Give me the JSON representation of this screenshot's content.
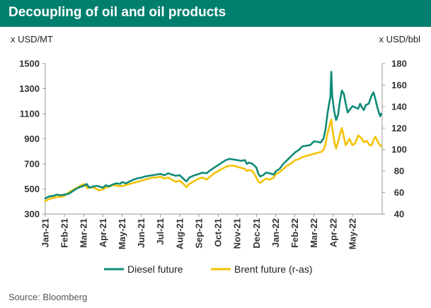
{
  "title": "Decoupling of oil and oil products",
  "source": "Source: Bloomberg",
  "chart_data": {
    "type": "line",
    "title": "Decoupling of oil and oil products",
    "ylabel_left": "x USD/MT",
    "ylabel_right": "x USD/bbl",
    "ylim_left": [
      300,
      1500
    ],
    "ylim_right": [
      40,
      180
    ],
    "yticks_left": [
      300,
      500,
      700,
      900,
      1100,
      1300,
      1500
    ],
    "yticks_right": [
      40,
      60,
      80,
      100,
      120,
      140,
      160,
      180
    ],
    "xticks": [
      "Jan-21",
      "Feb-21",
      "Mar-21",
      "Apr-21",
      "May-21",
      "Jun-21",
      "Jul-21",
      "Aug-21",
      "Sep-21",
      "Oct-21",
      "Nov-21",
      "Dec-21",
      "Jan-22",
      "Feb-22",
      "Mar-22",
      "Apr-22",
      "May-22"
    ],
    "x_unit": "months since Jan-21",
    "grid": false,
    "legend": "bottom",
    "series": [
      {
        "name": "Diesel future",
        "axis": "left",
        "color": "#0e8a78",
        "points": [
          [
            0.0,
            425
          ],
          [
            0.2,
            440
          ],
          [
            0.4,
            445
          ],
          [
            0.6,
            455
          ],
          [
            0.8,
            450
          ],
          [
            1.0,
            455
          ],
          [
            1.2,
            460
          ],
          [
            1.4,
            480
          ],
          [
            1.6,
            500
          ],
          [
            1.8,
            515
          ],
          [
            2.0,
            525
          ],
          [
            2.15,
            540
          ],
          [
            2.3,
            510
          ],
          [
            2.5,
            520
          ],
          [
            2.7,
            525
          ],
          [
            2.9,
            515
          ],
          [
            3.0,
            510
          ],
          [
            3.15,
            530
          ],
          [
            3.3,
            520
          ],
          [
            3.5,
            535
          ],
          [
            3.7,
            545
          ],
          [
            3.9,
            540
          ],
          [
            4.0,
            555
          ],
          [
            4.2,
            545
          ],
          [
            4.4,
            560
          ],
          [
            4.6,
            575
          ],
          [
            4.8,
            585
          ],
          [
            5.0,
            590
          ],
          [
            5.2,
            600
          ],
          [
            5.4,
            605
          ],
          [
            5.6,
            610
          ],
          [
            5.8,
            615
          ],
          [
            6.0,
            620
          ],
          [
            6.2,
            610
          ],
          [
            6.4,
            625
          ],
          [
            6.6,
            615
          ],
          [
            6.8,
            605
          ],
          [
            7.0,
            610
          ],
          [
            7.2,
            580
          ],
          [
            7.35,
            560
          ],
          [
            7.5,
            590
          ],
          [
            7.7,
            605
          ],
          [
            7.9,
            615
          ],
          [
            8.0,
            620
          ],
          [
            8.2,
            630
          ],
          [
            8.4,
            625
          ],
          [
            8.6,
            650
          ],
          [
            8.8,
            670
          ],
          [
            9.0,
            690
          ],
          [
            9.2,
            710
          ],
          [
            9.4,
            730
          ],
          [
            9.6,
            740
          ],
          [
            9.8,
            735
          ],
          [
            10.0,
            730
          ],
          [
            10.2,
            725
          ],
          [
            10.4,
            730
          ],
          [
            10.5,
            700
          ],
          [
            10.6,
            710
          ],
          [
            10.8,
            700
          ],
          [
            11.0,
            670
          ],
          [
            11.1,
            620
          ],
          [
            11.2,
            600
          ],
          [
            11.35,
            610
          ],
          [
            11.5,
            630
          ],
          [
            11.7,
            625
          ],
          [
            11.9,
            615
          ],
          [
            12.0,
            640
          ],
          [
            12.2,
            660
          ],
          [
            12.4,
            700
          ],
          [
            12.6,
            730
          ],
          [
            12.8,
            760
          ],
          [
            13.0,
            790
          ],
          [
            13.2,
            810
          ],
          [
            13.4,
            840
          ],
          [
            13.6,
            845
          ],
          [
            13.8,
            850
          ],
          [
            14.0,
            880
          ],
          [
            14.2,
            875
          ],
          [
            14.35,
            870
          ],
          [
            14.5,
            905
          ],
          [
            14.6,
            980
          ],
          [
            14.7,
            1100
          ],
          [
            14.8,
            1190
          ],
          [
            14.85,
            1235
          ],
          [
            14.9,
            1435
          ],
          [
            14.95,
            1240
          ],
          [
            15.05,
            1120
          ],
          [
            15.15,
            1050
          ],
          [
            15.25,
            1090
          ],
          [
            15.35,
            1200
          ],
          [
            15.45,
            1285
          ],
          [
            15.55,
            1260
          ],
          [
            15.65,
            1180
          ],
          [
            15.75,
            1110
          ],
          [
            15.85,
            1130
          ],
          [
            16.0,
            1160
          ],
          [
            16.15,
            1150
          ],
          [
            16.3,
            1140
          ],
          [
            16.4,
            1180
          ],
          [
            16.5,
            1150
          ],
          [
            16.6,
            1130
          ],
          [
            16.7,
            1170
          ],
          [
            16.85,
            1180
          ],
          [
            17.0,
            1245
          ],
          [
            17.1,
            1270
          ],
          [
            17.2,
            1215
          ],
          [
            17.3,
            1150
          ],
          [
            17.4,
            1100
          ],
          [
            17.45,
            1080
          ],
          [
            17.5,
            1100
          ]
        ]
      },
      {
        "name": "Brent future (r-as)",
        "axis": "right",
        "color": "#f2c200",
        "points": [
          [
            0.0,
            52
          ],
          [
            0.2,
            54
          ],
          [
            0.4,
            55
          ],
          [
            0.6,
            56
          ],
          [
            0.8,
            56
          ],
          [
            1.0,
            57
          ],
          [
            1.2,
            60
          ],
          [
            1.4,
            62
          ],
          [
            1.6,
            64
          ],
          [
            1.8,
            66
          ],
          [
            2.0,
            68
          ],
          [
            2.2,
            64
          ],
          [
            2.4,
            65
          ],
          [
            2.6,
            64
          ],
          [
            2.8,
            62
          ],
          [
            3.0,
            63
          ],
          [
            3.2,
            65
          ],
          [
            3.4,
            66
          ],
          [
            3.6,
            67
          ],
          [
            3.8,
            66
          ],
          [
            4.0,
            66
          ],
          [
            4.2,
            67
          ],
          [
            4.4,
            68
          ],
          [
            4.6,
            69
          ],
          [
            4.8,
            70
          ],
          [
            5.0,
            71
          ],
          [
            5.2,
            72
          ],
          [
            5.4,
            73
          ],
          [
            5.6,
            74
          ],
          [
            5.8,
            74
          ],
          [
            6.0,
            75
          ],
          [
            6.2,
            73
          ],
          [
            6.4,
            74
          ],
          [
            6.6,
            72
          ],
          [
            6.8,
            70
          ],
          [
            7.0,
            71
          ],
          [
            7.2,
            68
          ],
          [
            7.35,
            65
          ],
          [
            7.5,
            68
          ],
          [
            7.7,
            70
          ],
          [
            7.9,
            72
          ],
          [
            8.0,
            73
          ],
          [
            8.2,
            74
          ],
          [
            8.4,
            72
          ],
          [
            8.6,
            75
          ],
          [
            8.8,
            78
          ],
          [
            9.0,
            80
          ],
          [
            9.2,
            82
          ],
          [
            9.4,
            84
          ],
          [
            9.6,
            85
          ],
          [
            9.8,
            85
          ],
          [
            10.0,
            84
          ],
          [
            10.2,
            83
          ],
          [
            10.4,
            82
          ],
          [
            10.5,
            80
          ],
          [
            10.6,
            81
          ],
          [
            10.8,
            80
          ],
          [
            11.0,
            74
          ],
          [
            11.1,
            70
          ],
          [
            11.2,
            69
          ],
          [
            11.35,
            71
          ],
          [
            11.5,
            73
          ],
          [
            11.7,
            72
          ],
          [
            11.9,
            74
          ],
          [
            12.0,
            77
          ],
          [
            12.2,
            79
          ],
          [
            12.4,
            82
          ],
          [
            12.6,
            85
          ],
          [
            12.8,
            87
          ],
          [
            13.0,
            90
          ],
          [
            13.2,
            91
          ],
          [
            13.4,
            93
          ],
          [
            13.6,
            94
          ],
          [
            13.8,
            95
          ],
          [
            14.0,
            96
          ],
          [
            14.2,
            97
          ],
          [
            14.4,
            98
          ],
          [
            14.5,
            100
          ],
          [
            14.6,
            105
          ],
          [
            14.7,
            115
          ],
          [
            14.8,
            122
          ],
          [
            14.9,
            128
          ],
          [
            14.95,
            120
          ],
          [
            15.05,
            108
          ],
          [
            15.15,
            101
          ],
          [
            15.25,
            107
          ],
          [
            15.35,
            114
          ],
          [
            15.45,
            120
          ],
          [
            15.55,
            112
          ],
          [
            15.65,
            104
          ],
          [
            15.75,
            107
          ],
          [
            15.85,
            110
          ],
          [
            16.0,
            104
          ],
          [
            16.15,
            106
          ],
          [
            16.3,
            113
          ],
          [
            16.45,
            111
          ],
          [
            16.6,
            107
          ],
          [
            16.75,
            108
          ],
          [
            16.9,
            104
          ],
          [
            17.0,
            104
          ],
          [
            17.1,
            109
          ],
          [
            17.2,
            112
          ],
          [
            17.3,
            108
          ],
          [
            17.4,
            105
          ],
          [
            17.5,
            103
          ]
        ]
      }
    ]
  }
}
